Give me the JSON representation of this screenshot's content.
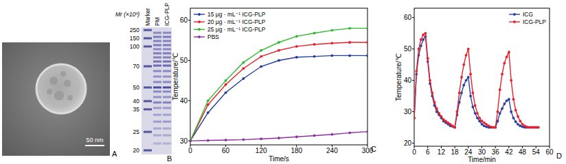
{
  "tem_image": {
    "panel_label": "A",
    "scale_bar": "50 nm"
  },
  "gel": {
    "panel_label": "B",
    "axis_label": "Mr (×10³)",
    "markers": [
      250,
      150,
      100,
      70,
      50,
      40,
      35,
      25,
      20
    ],
    "lanes": [
      "Marker",
      "PM",
      "ICG-PLP"
    ]
  },
  "chart_data": [
    {
      "type": "line",
      "annotations": [
        "C"
      ],
      "x": [
        0,
        30,
        60,
        90,
        120,
        150,
        180,
        210,
        240,
        270,
        300
      ],
      "series": [
        {
          "name": "15 μg · mL⁻¹ ICG-PLP",
          "color": "#1f3c99",
          "values": [
            30,
            37,
            42,
            45.5,
            48.5,
            50,
            50.8,
            51,
            51.2,
            51.2,
            51.2
          ]
        },
        {
          "name": "20 μg · mL⁻¹ ICG-PLP",
          "color": "#e8202a",
          "values": [
            30,
            39,
            44,
            48,
            51,
            52.5,
            53.5,
            54,
            54.3,
            54.5,
            54.5
          ]
        },
        {
          "name": "25 μg · mL⁻¹ ICG-PLP",
          "color": "#2db82d",
          "values": [
            30,
            40,
            45,
            49.5,
            52.5,
            54.5,
            56,
            56.8,
            57.5,
            58,
            58
          ]
        },
        {
          "name": "PBS",
          "color": "#8b2f9e",
          "values": [
            30,
            30.1,
            30.2,
            30.3,
            30.5,
            30.7,
            31,
            31.3,
            31.6,
            32,
            32.3
          ]
        }
      ],
      "xlim": [
        0,
        300
      ],
      "xticks": [
        0,
        60,
        120,
        180,
        240,
        300
      ],
      "ylim": [
        29,
        63
      ],
      "yticks": [
        30,
        40,
        50,
        60
      ],
      "x_label": "Time/s",
      "y_label": "Temperature/℃",
      "legend": "upper left",
      "marker": "circle"
    },
    {
      "type": "line",
      "annotations": [
        "D"
      ],
      "x": [
        0,
        1,
        2,
        3,
        4,
        5,
        6,
        7,
        8,
        9,
        10,
        11,
        12,
        13,
        14,
        15,
        16,
        17,
        18,
        19,
        20,
        21,
        22,
        23,
        24,
        25,
        26,
        27,
        28,
        29,
        30,
        31,
        32,
        33,
        34,
        35,
        36,
        37,
        38,
        39,
        40,
        41,
        42,
        43,
        44,
        45,
        46,
        47,
        48,
        49,
        50,
        51,
        52,
        53,
        54,
        55
      ],
      "series": [
        {
          "name": "ICG",
          "color": "#2b3fa0",
          "values": [
            28,
            42,
            48,
            51,
            53,
            54,
            46,
            39,
            35,
            32,
            30,
            29,
            28,
            27,
            26.5,
            26,
            25.5,
            25.3,
            25,
            29,
            33,
            36,
            38.5,
            40,
            41,
            35,
            31.5,
            29.5,
            28,
            27,
            26,
            25.5,
            25.2,
            25,
            25,
            25,
            25,
            27,
            29.5,
            31,
            32.5,
            33.5,
            34,
            30,
            28,
            26.8,
            26,
            25.5,
            25.2,
            25,
            25,
            25,
            25,
            25,
            25,
            25
          ]
        },
        {
          "name": "ICG-PLP",
          "color": "#e8202a",
          "values": [
            28,
            43,
            50,
            53,
            54.5,
            55,
            47,
            40,
            36,
            33,
            31,
            29.5,
            28.5,
            27.5,
            27,
            26.5,
            26,
            25.5,
            25,
            30,
            36,
            41,
            45,
            48,
            50,
            42,
            36,
            32,
            29.5,
            28,
            27,
            26.5,
            26,
            25.5,
            25.2,
            25,
            25,
            30,
            37,
            42,
            45.5,
            47.5,
            49,
            40,
            34,
            30.5,
            28.5,
            27,
            26,
            25.5,
            25.2,
            25,
            25,
            25,
            25,
            25
          ]
        }
      ],
      "xlim": [
        0,
        60
      ],
      "xticks": [
        0,
        6,
        12,
        18,
        24,
        30,
        36,
        42,
        48,
        54,
        60
      ],
      "ylim": [
        19,
        63
      ],
      "yticks": [
        20,
        30,
        40,
        50,
        60
      ],
      "x_label": "Time/min",
      "y_label": "Temperature/℃",
      "legend": "upper right",
      "marker": "circle"
    }
  ]
}
